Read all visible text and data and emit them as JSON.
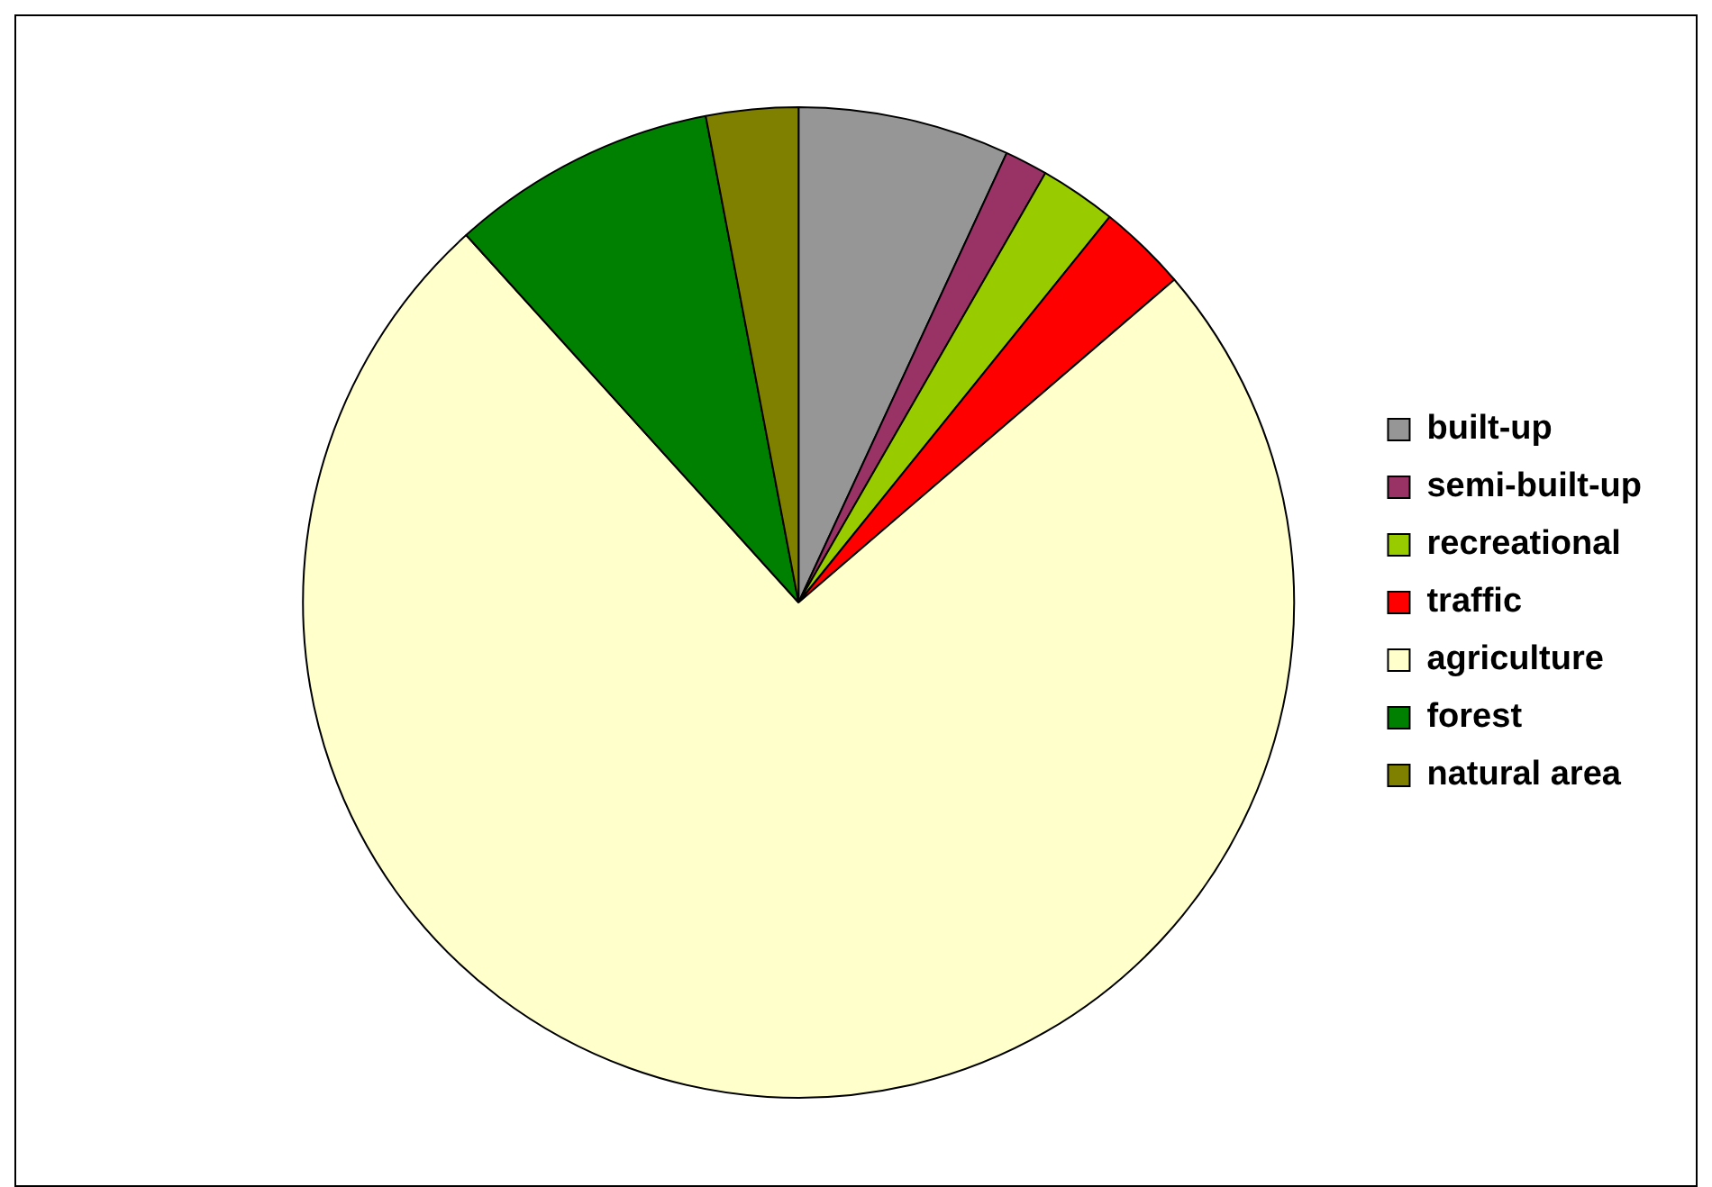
{
  "chart_data": {
    "type": "pie",
    "categories": [
      "built-up",
      "semi-built-up",
      "recreational",
      "traffic",
      "agriculture",
      "forest",
      "natural area"
    ],
    "values": [
      6.9,
      1.4,
      2.5,
      2.9,
      74.6,
      8.7,
      3.0
    ],
    "colors": [
      "#969696",
      "#993366",
      "#99cc00",
      "#ff0000",
      "#ffffcc",
      "#008000",
      "#808000"
    ],
    "legend": "right"
  }
}
